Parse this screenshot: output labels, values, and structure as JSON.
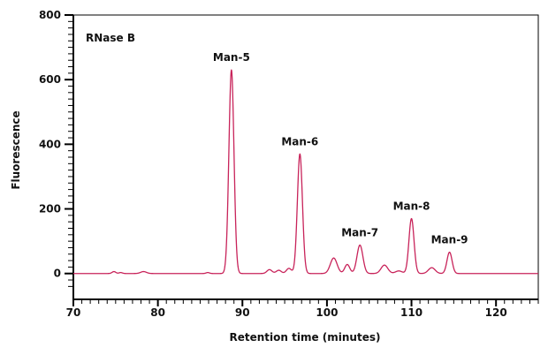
{
  "chart_data": {
    "type": "line",
    "title": "",
    "annotation": "RNase B",
    "xlabel": "Retention time (minutes)",
    "ylabel": "Fluorescence",
    "xlim": [
      70,
      125
    ],
    "ylim": [
      -80,
      800
    ],
    "x_ticks": [
      70,
      80,
      90,
      100,
      110,
      120
    ],
    "x_tick_labels": [
      "70",
      "80",
      "90",
      "100",
      "110",
      "120"
    ],
    "y_ticks": [
      0,
      200,
      400,
      600,
      800
    ],
    "y_tick_labels": [
      "0",
      "200",
      "400",
      "600",
      "800"
    ],
    "grid": false,
    "line_color": "#c8235a",
    "series": [
      {
        "baseline": 0,
        "peaks": [
          {
            "x": 74.8,
            "y": 6,
            "w": 0.22
          },
          {
            "x": 75.6,
            "y": 3,
            "w": 0.2
          },
          {
            "x": 78.3,
            "y": 6,
            "w": 0.35
          },
          {
            "x": 85.9,
            "y": 3,
            "w": 0.2
          },
          {
            "x": 88.7,
            "y": 630,
            "w": 0.3
          },
          {
            "x": 93.2,
            "y": 12,
            "w": 0.3
          },
          {
            "x": 94.3,
            "y": 10,
            "w": 0.3
          },
          {
            "x": 95.5,
            "y": 16,
            "w": 0.3
          },
          {
            "x": 96.8,
            "y": 370,
            "w": 0.3
          },
          {
            "x": 100.8,
            "y": 48,
            "w": 0.4
          },
          {
            "x": 102.4,
            "y": 28,
            "w": 0.3
          },
          {
            "x": 103.9,
            "y": 88,
            "w": 0.35
          },
          {
            "x": 106.8,
            "y": 26,
            "w": 0.4
          },
          {
            "x": 108.5,
            "y": 8,
            "w": 0.4
          },
          {
            "x": 110.0,
            "y": 170,
            "w": 0.3
          },
          {
            "x": 112.4,
            "y": 18,
            "w": 0.4
          },
          {
            "x": 114.5,
            "y": 66,
            "w": 0.3
          }
        ]
      }
    ],
    "peak_labels": [
      {
        "x": 88.7,
        "y": 630,
        "text": "Man-5"
      },
      {
        "x": 96.8,
        "y": 370,
        "text": "Man-6"
      },
      {
        "x": 103.9,
        "y": 88,
        "text": "Man-7"
      },
      {
        "x": 110.0,
        "y": 170,
        "text": "Man-8"
      },
      {
        "x": 114.5,
        "y": 66,
        "text": "Man-9"
      }
    ]
  }
}
